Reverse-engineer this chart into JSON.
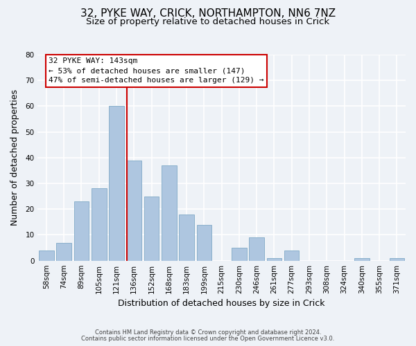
{
  "title_line1": "32, PYKE WAY, CRICK, NORTHAMPTON, NN6 7NZ",
  "title_line2": "Size of property relative to detached houses in Crick",
  "xlabel": "Distribution of detached houses by size in Crick",
  "ylabel": "Number of detached properties",
  "bar_labels": [
    "58sqm",
    "74sqm",
    "89sqm",
    "105sqm",
    "121sqm",
    "136sqm",
    "152sqm",
    "168sqm",
    "183sqm",
    "199sqm",
    "215sqm",
    "230sqm",
    "246sqm",
    "261sqm",
    "277sqm",
    "293sqm",
    "308sqm",
    "324sqm",
    "340sqm",
    "355sqm",
    "371sqm"
  ],
  "bar_values": [
    4,
    7,
    23,
    28,
    60,
    39,
    25,
    37,
    18,
    14,
    0,
    5,
    9,
    1,
    4,
    0,
    0,
    0,
    1,
    0,
    1
  ],
  "bar_color": "#aec6e0",
  "bar_edge_color": "#8ab0cc",
  "ylim": [
    0,
    80
  ],
  "yticks": [
    0,
    10,
    20,
    30,
    40,
    50,
    60,
    70,
    80
  ],
  "property_line_color": "#cc0000",
  "annotation_title": "32 PYKE WAY: 143sqm",
  "annotation_line1": "← 53% of detached houses are smaller (147)",
  "annotation_line2": "47% of semi-detached houses are larger (129) →",
  "annotation_box_color": "#ffffff",
  "annotation_box_edge_color": "#cc0000",
  "footer_line1": "Contains HM Land Registry data © Crown copyright and database right 2024.",
  "footer_line2": "Contains public sector information licensed under the Open Government Licence v3.0.",
  "background_color": "#eef2f7",
  "grid_color": "#ffffff",
  "title_fontsize": 11,
  "subtitle_fontsize": 9.5,
  "axis_label_fontsize": 9,
  "tick_fontsize": 7.5,
  "annotation_fontsize": 8,
  "footer_fontsize": 6
}
